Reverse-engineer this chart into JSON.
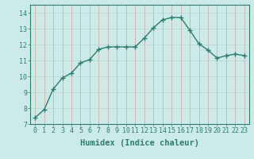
{
  "x": [
    0,
    1,
    2,
    3,
    4,
    5,
    6,
    7,
    8,
    9,
    10,
    11,
    12,
    13,
    14,
    15,
    16,
    17,
    18,
    19,
    20,
    21,
    22,
    23
  ],
  "y": [
    7.4,
    7.9,
    9.2,
    9.9,
    10.2,
    10.85,
    11.05,
    11.7,
    11.85,
    11.85,
    11.85,
    11.85,
    12.4,
    13.05,
    13.55,
    13.7,
    13.7,
    12.9,
    12.05,
    11.65,
    11.15,
    11.3,
    11.4,
    11.3
  ],
  "line_color": "#2e7d6e",
  "marker": "+",
  "marker_size": 4,
  "bg_color": "#cceae7",
  "grid_color_major": "#b0d8d4",
  "grid_color_minor": "#c8e8e4",
  "xlabel": "Humidex (Indice chaleur)",
  "ylim": [
    7,
    14.5
  ],
  "xlim": [
    -0.5,
    23.5
  ],
  "yticks": [
    7,
    8,
    9,
    10,
    11,
    12,
    13,
    14
  ],
  "xticks": [
    0,
    1,
    2,
    3,
    4,
    5,
    6,
    7,
    8,
    9,
    10,
    11,
    12,
    13,
    14,
    15,
    16,
    17,
    18,
    19,
    20,
    21,
    22,
    23
  ],
  "tick_label_fontsize": 6.0,
  "xlabel_fontsize": 7.5,
  "axis_color": "#2e7d6e",
  "spine_color": "#2e7d6e",
  "line_width": 1.0
}
